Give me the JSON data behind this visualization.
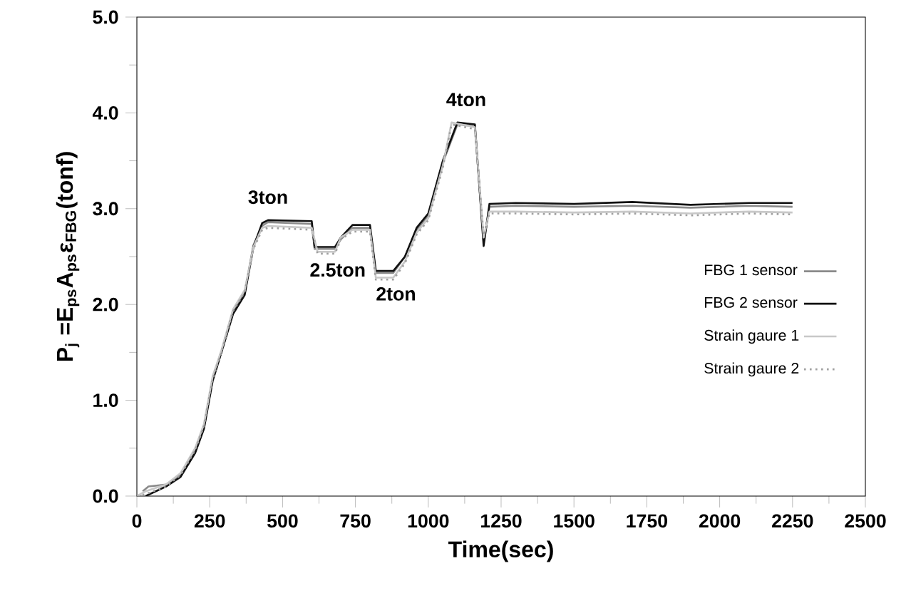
{
  "chart_data": {
    "type": "line",
    "xlabel": "Time(sec)",
    "ylabel": "P$_{j}$ =E$_{ps}$A$_{ps}$ε$_{FBG}$(tonf)",
    "xlim": [
      0,
      2500
    ],
    "ylim": [
      0,
      5
    ],
    "xticks": [
      0,
      250,
      500,
      750,
      1000,
      1250,
      1500,
      1750,
      2000,
      2250,
      2500
    ],
    "yticks": [
      {
        "value": 0,
        "label": "0.0"
      },
      {
        "value": 1,
        "label": "1.0"
      },
      {
        "value": 2,
        "label": "2.0"
      },
      {
        "value": 3,
        "label": "3.0"
      },
      {
        "value": 4,
        "label": "4.0"
      },
      {
        "value": 5,
        "label": "5.0"
      }
    ],
    "legend": "right",
    "grid": false,
    "annotations": [
      {
        "text": "3ton",
        "x": 450,
        "y": 2.88
      },
      {
        "text": "2.5ton",
        "x": 650,
        "y": 2.6
      },
      {
        "text": "2ton",
        "x": 850,
        "y": 2.35
      },
      {
        "text": "4ton",
        "x": 1130,
        "y": 3.9
      }
    ],
    "series": [
      {
        "name": "FBG 1 sensor",
        "color": "#8a8a8a",
        "line_style": "solid",
        "x": [
          20,
          40,
          100,
          150,
          200,
          230,
          260,
          290,
          330,
          370,
          400,
          430,
          450,
          600,
          610,
          680,
          700,
          740,
          800,
          820,
          880,
          920,
          960,
          1000,
          1050,
          1100,
          1160,
          1190,
          1210,
          1300,
          1500,
          1700,
          1900,
          2100,
          2250
        ],
        "values": [
          0.05,
          0.1,
          0.12,
          0.22,
          0.47,
          0.72,
          1.22,
          1.5,
          1.92,
          2.12,
          2.62,
          2.82,
          2.86,
          2.84,
          2.58,
          2.58,
          2.68,
          2.8,
          2.8,
          2.33,
          2.33,
          2.5,
          2.78,
          2.93,
          3.48,
          3.88,
          3.86,
          2.65,
          3.02,
          3.03,
          3.02,
          3.03,
          3.01,
          3.03,
          3.02
        ]
      },
      {
        "name": "FBG 2 sensor",
        "color": "#111111",
        "line_style": "solid",
        "x": [
          30,
          100,
          150,
          200,
          230,
          260,
          290,
          330,
          370,
          400,
          430,
          450,
          600,
          610,
          680,
          700,
          740,
          800,
          820,
          880,
          920,
          960,
          1000,
          1050,
          1100,
          1160,
          1190,
          1210,
          1300,
          1500,
          1700,
          1900,
          2100,
          2250
        ],
        "values": [
          0,
          0.1,
          0.2,
          0.45,
          0.7,
          1.2,
          1.5,
          1.9,
          2.1,
          2.6,
          2.85,
          2.88,
          2.87,
          2.6,
          2.6,
          2.7,
          2.83,
          2.83,
          2.35,
          2.35,
          2.5,
          2.8,
          2.95,
          3.5,
          3.9,
          3.88,
          2.61,
          3.05,
          3.06,
          3.05,
          3.07,
          3.04,
          3.06,
          3.06
        ]
      },
      {
        "name": "Strain gaure 1",
        "color": "#c8c8c8",
        "line_style": "solid",
        "x": [
          0,
          30,
          100,
          150,
          200,
          230,
          260,
          290,
          330,
          370,
          400,
          430,
          450,
          600,
          620,
          680,
          700,
          740,
          800,
          820,
          880,
          920,
          960,
          1000,
          1050,
          1080,
          1160,
          1190,
          1210,
          1300,
          1500,
          1700,
          1900,
          2100,
          2250
        ],
        "values": [
          0,
          0.05,
          0.12,
          0.24,
          0.5,
          0.75,
          1.25,
          1.52,
          1.95,
          2.15,
          2.6,
          2.8,
          2.82,
          2.8,
          2.55,
          2.55,
          2.7,
          2.78,
          2.78,
          2.28,
          2.28,
          2.45,
          2.75,
          2.9,
          3.45,
          3.9,
          3.85,
          2.7,
          2.97,
          2.97,
          2.96,
          2.97,
          2.95,
          2.97,
          2.96
        ]
      },
      {
        "name": "Strain gaure 2",
        "color": "#a0a0a0",
        "line_style": "dotted",
        "x": [
          0,
          30,
          100,
          150,
          200,
          230,
          260,
          290,
          330,
          370,
          400,
          430,
          450,
          600,
          620,
          680,
          700,
          740,
          800,
          820,
          880,
          920,
          960,
          1000,
          1050,
          1080,
          1160,
          1190,
          1210,
          1300,
          1500,
          1700,
          1900,
          2100,
          2250
        ],
        "values": [
          0,
          0.02,
          0.1,
          0.22,
          0.48,
          0.73,
          1.22,
          1.5,
          1.93,
          2.13,
          2.58,
          2.78,
          2.8,
          2.78,
          2.53,
          2.53,
          2.68,
          2.76,
          2.76,
          2.26,
          2.26,
          2.43,
          2.73,
          2.88,
          3.43,
          3.88,
          3.83,
          2.72,
          2.95,
          2.95,
          2.94,
          2.95,
          2.93,
          2.95,
          2.94
        ]
      }
    ]
  }
}
